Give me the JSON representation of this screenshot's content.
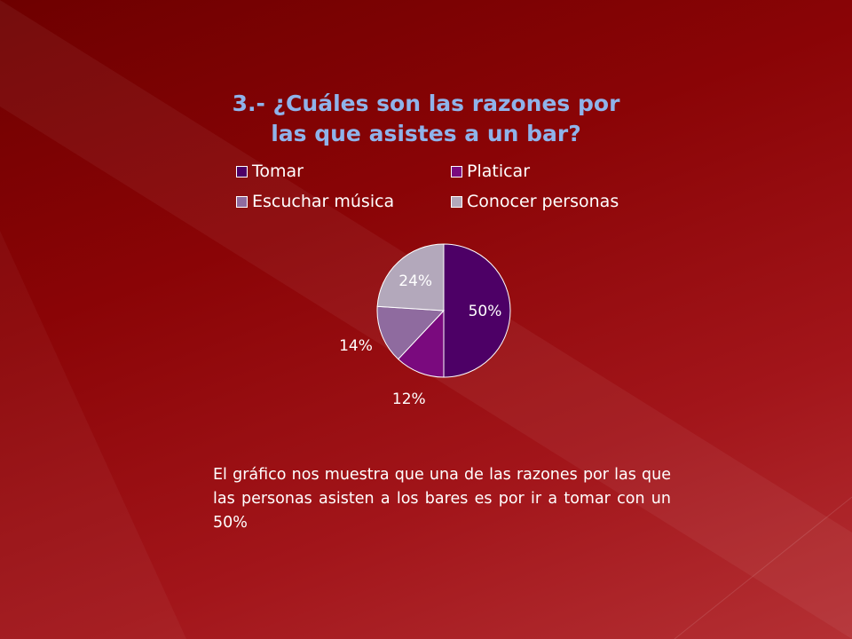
{
  "slide": {
    "title_line1": "3.- ¿Cuáles son las razones por",
    "title_line2": "las que asistes a un bar?",
    "body_text": "El gráfico nos muestra que una de las razones por las que las personas asisten  a los bares es por ir a tomar con un 50%"
  },
  "chart_data": {
    "type": "pie",
    "categories": [
      "Tomar",
      "Platicar",
      "Escuchar música",
      "Conocer personas"
    ],
    "values": [
      50,
      12,
      14,
      24
    ],
    "labels": [
      "50%",
      "12%",
      "14%",
      "24%"
    ],
    "colors": [
      "#4d0066",
      "#7a0a7e",
      "#8f6b9f",
      "#b3a8bb"
    ],
    "label_colors": [
      "#ffffff",
      "#ffffff",
      "#ffffff",
      "#ffffff"
    ],
    "legend_position": "top",
    "title": "3.- ¿Cuáles son las razones por las que asistes a un bar?"
  },
  "theme": {
    "title_color": "#8fb3ea",
    "text_color": "#ffffff"
  }
}
